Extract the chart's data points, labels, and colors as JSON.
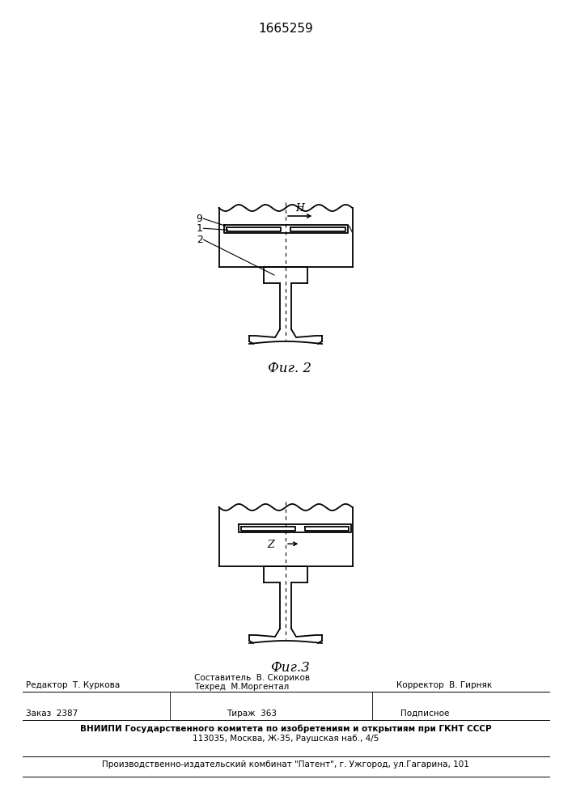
{
  "patent_number": "1665259",
  "fig2_label": "Фиг. 2",
  "fig3_label": "Фиг.3",
  "bg_color": "#ffffff",
  "line_color": "#000000",
  "footer_editor": "Редактор  Т. Куркова",
  "footer_compiler": "Составитель  В. Скориков",
  "footer_tech": "Техред  М.Моргентал",
  "footer_corrector": "Корректор  В. Гирняк",
  "footer_order": "Заказ  2387",
  "footer_copies": "Тираж  363",
  "footer_subscr": "Подписное",
  "footer_vnipi1": "ВНИИПИ Государственного комитета по изобретениям и открытиям при ГКНТ СССР",
  "footer_vnipi2": "113035, Москва, Ж-35, Раушская наб., 4/5",
  "footer_plant": "Производственно-издательский комбинат \"Патент\", г. Ужгород, ул.Гагарина, 101"
}
